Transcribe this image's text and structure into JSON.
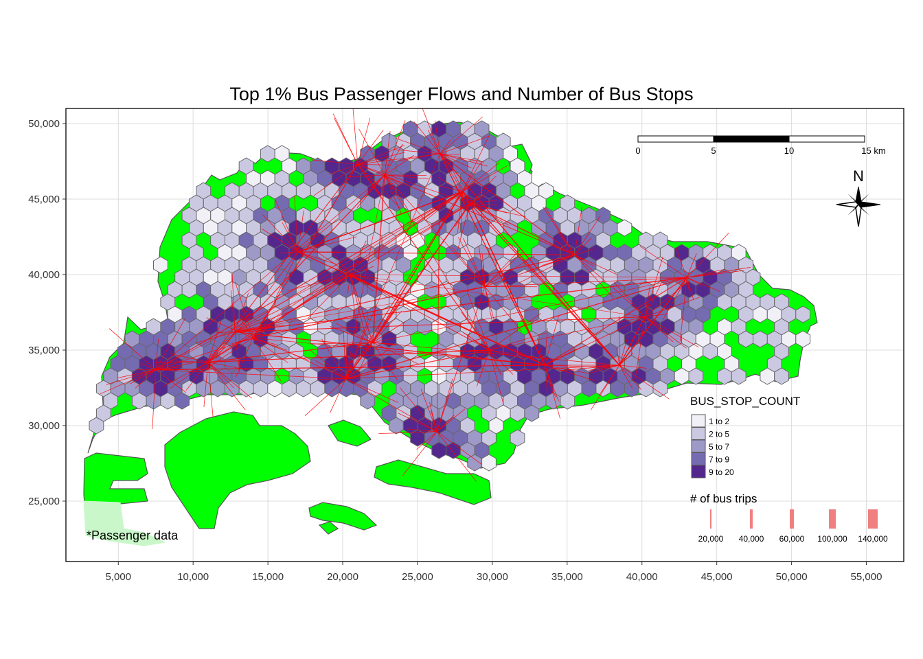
{
  "title": "Top 1% Bus Passenger Flows and Number of Bus Stops",
  "axes": {
    "x_ticks": [
      "5,000",
      "10,000",
      "15,000",
      "20,000",
      "25,000",
      "30,000",
      "35,000",
      "40,000",
      "45,000",
      "50,000",
      "55,000"
    ],
    "x_values": [
      5000,
      10000,
      15000,
      20000,
      25000,
      30000,
      35000,
      40000,
      45000,
      50000,
      55000
    ],
    "y_ticks": [
      "25,000",
      "30,000",
      "35,000",
      "40,000",
      "45,000",
      "50,000"
    ],
    "y_values": [
      25000,
      30000,
      35000,
      40000,
      45000,
      50000
    ],
    "x_range": [
      1500,
      57500
    ],
    "y_range": [
      21000,
      51000
    ],
    "grid": true
  },
  "scale_bar": {
    "labels": [
      "0",
      "5",
      "10",
      "15 km"
    ]
  },
  "north_arrow": {
    "label": "N"
  },
  "legend_fill": {
    "title": "BUS_STOP_COUNT",
    "items": [
      {
        "label": "1 to 2",
        "color": "#f2f0f7"
      },
      {
        "label": "2 to 5",
        "color": "#cbc9e2"
      },
      {
        "label": "5 to 7",
        "color": "#9e9ac8"
      },
      {
        "label": "7 to 9",
        "color": "#756bb1"
      },
      {
        "label": "9 to 20",
        "color": "#54278f"
      }
    ]
  },
  "legend_flow": {
    "title": "# of bus trips",
    "items": [
      {
        "label": "20,000",
        "value": 20000
      },
      {
        "label": "40,000",
        "value": 40000
      },
      {
        "label": "60,000",
        "value": 60000
      },
      {
        "label": "100,000",
        "value": 100000
      },
      {
        "label": "140,000",
        "value": 140000
      }
    ]
  },
  "credit": "*Passenger data",
  "colors": {
    "land": "#00ff00",
    "land_outline": "#555555",
    "flow": "#ff0000",
    "hex_outline": "#666666"
  },
  "chart_data": {
    "type": "map",
    "map_area": "Singapore",
    "layers": [
      "planning-subzone polygons",
      "hexagon grid of bus stop counts",
      "origin-destination flow lines"
    ],
    "fill_variable": "BUS_STOP_COUNT",
    "fill_classes": [
      "1 to 2",
      "2 to 5",
      "5 to 7",
      "7 to 9",
      "9 to 20"
    ],
    "line_variable": "# of bus trips",
    "line_width_breaks": [
      20000,
      40000,
      60000,
      100000,
      140000
    ],
    "flow_hubs": [
      {
        "x": 21000,
        "y": 47300
      },
      {
        "x": 22800,
        "y": 46600
      },
      {
        "x": 26500,
        "y": 48000
      },
      {
        "x": 28500,
        "y": 44700
      },
      {
        "x": 28000,
        "y": 45500
      },
      {
        "x": 35500,
        "y": 41300
      },
      {
        "x": 29500,
        "y": 39200
      },
      {
        "x": 20500,
        "y": 40000
      },
      {
        "x": 17000,
        "y": 41500
      },
      {
        "x": 14000,
        "y": 35800
      },
      {
        "x": 12800,
        "y": 36200
      },
      {
        "x": 11000,
        "y": 34200
      },
      {
        "x": 7500,
        "y": 33700
      },
      {
        "x": 20200,
        "y": 33100
      },
      {
        "x": 22000,
        "y": 35500
      },
      {
        "x": 26300,
        "y": 29600
      },
      {
        "x": 29800,
        "y": 35000
      },
      {
        "x": 33500,
        "y": 34000
      },
      {
        "x": 38500,
        "y": 34000
      },
      {
        "x": 40200,
        "y": 37200
      },
      {
        "x": 43000,
        "y": 39800
      }
    ]
  }
}
